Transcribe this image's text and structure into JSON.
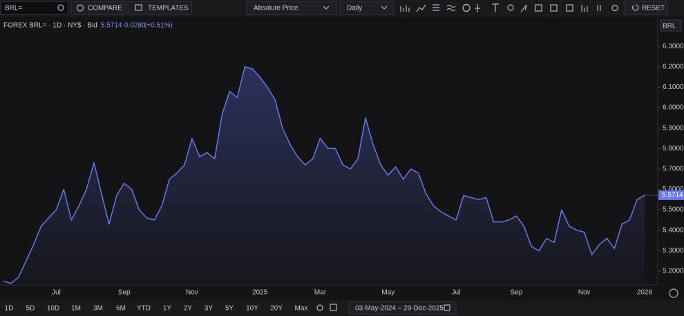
{
  "toolbar": {
    "symbol": "BRL=",
    "compare": "COMPARE",
    "templates": "TEMPLATES",
    "price_mode": "Absolute Price",
    "interval": "Daily",
    "reset": "RESET"
  },
  "header": {
    "instrument": "FOREX BRL= · 1D · NY$ · Bid",
    "last_price": "5.5714",
    "change": "0.0280",
    "change_pct": "(+0.51%)"
  },
  "axis_currency": "BRL",
  "chart_data": {
    "type": "line",
    "color": "#6b78e8",
    "grid": false,
    "categories": [
      null,
      null,
      null,
      null,
      null,
      null,
      null,
      "Jul",
      null,
      null,
      null,
      null,
      null,
      null,
      null,
      null,
      "Sep",
      null,
      null,
      null,
      null,
      null,
      null,
      null,
      null,
      "Nov",
      null,
      null,
      null,
      null,
      null,
      null,
      null,
      null,
      "2025",
      null,
      null,
      null,
      null,
      null,
      null,
      null,
      "Mar",
      null,
      null,
      null,
      null,
      null,
      null,
      null,
      null,
      "May",
      null,
      null,
      null,
      null,
      null,
      null,
      null,
      null,
      "Jul",
      null,
      null,
      null,
      null,
      null,
      null,
      null,
      "Sep",
      null,
      null,
      null,
      null,
      null,
      null,
      null,
      null,
      "Nov",
      null,
      null,
      null,
      null,
      null,
      null,
      null,
      "2026"
    ],
    "series": [
      {
        "name": "BRL=",
        "color": "#6b78e8",
        "values": [
          5.15,
          5.14,
          5.17,
          5.25,
          5.33,
          5.42,
          5.46,
          5.5,
          5.6,
          5.45,
          5.52,
          5.6,
          5.73,
          5.58,
          5.43,
          5.57,
          5.63,
          5.6,
          5.5,
          5.46,
          5.45,
          5.52,
          5.65,
          5.68,
          5.72,
          5.85,
          5.76,
          5.78,
          5.75,
          5.97,
          6.08,
          6.05,
          6.2,
          6.19,
          6.15,
          6.1,
          6.04,
          5.9,
          5.82,
          5.76,
          5.72,
          5.75,
          5.85,
          5.8,
          5.8,
          5.72,
          5.7,
          5.75,
          5.95,
          5.82,
          5.72,
          5.67,
          5.71,
          5.65,
          5.7,
          5.68,
          5.58,
          5.52,
          5.49,
          5.47,
          5.45,
          5.57,
          5.56,
          5.55,
          5.56,
          5.44,
          5.44,
          5.45,
          5.47,
          5.42,
          5.32,
          5.3,
          5.36,
          5.34,
          5.5,
          5.42,
          5.4,
          5.39,
          5.28,
          5.33,
          5.36,
          5.31,
          5.43,
          5.45,
          5.55,
          5.5714
        ]
      }
    ],
    "ylim": [
      5.132,
      6.443
    ],
    "yticks": [
      {
        "value": 5.2,
        "label": "5.2000"
      },
      {
        "value": 5.3,
        "label": "5.3000"
      },
      {
        "value": 5.4,
        "label": "5.4000"
      },
      {
        "value": 5.5,
        "label": "5.5000"
      },
      {
        "value": 5.6,
        "label": "5.6000"
      },
      {
        "value": 5.7,
        "label": "5.7000"
      },
      {
        "value": 5.8,
        "label": "5.8000"
      },
      {
        "value": 5.9,
        "label": "5.9000"
      },
      {
        "value": 6.0,
        "label": "6.0000"
      },
      {
        "value": 6.1,
        "label": "6.1000"
      },
      {
        "value": 6.2,
        "label": "6.2000"
      },
      {
        "value": 6.3,
        "label": "6.3000"
      }
    ]
  },
  "range_buttons": [
    "1D",
    "5D",
    "10D",
    "1M",
    "3M",
    "6M",
    "YTD",
    "1Y",
    "2Y",
    "3Y",
    "5Y",
    "10Y",
    "20Y",
    "Max"
  ],
  "date_range": "03-May-2024 – 29-Dec-2025"
}
